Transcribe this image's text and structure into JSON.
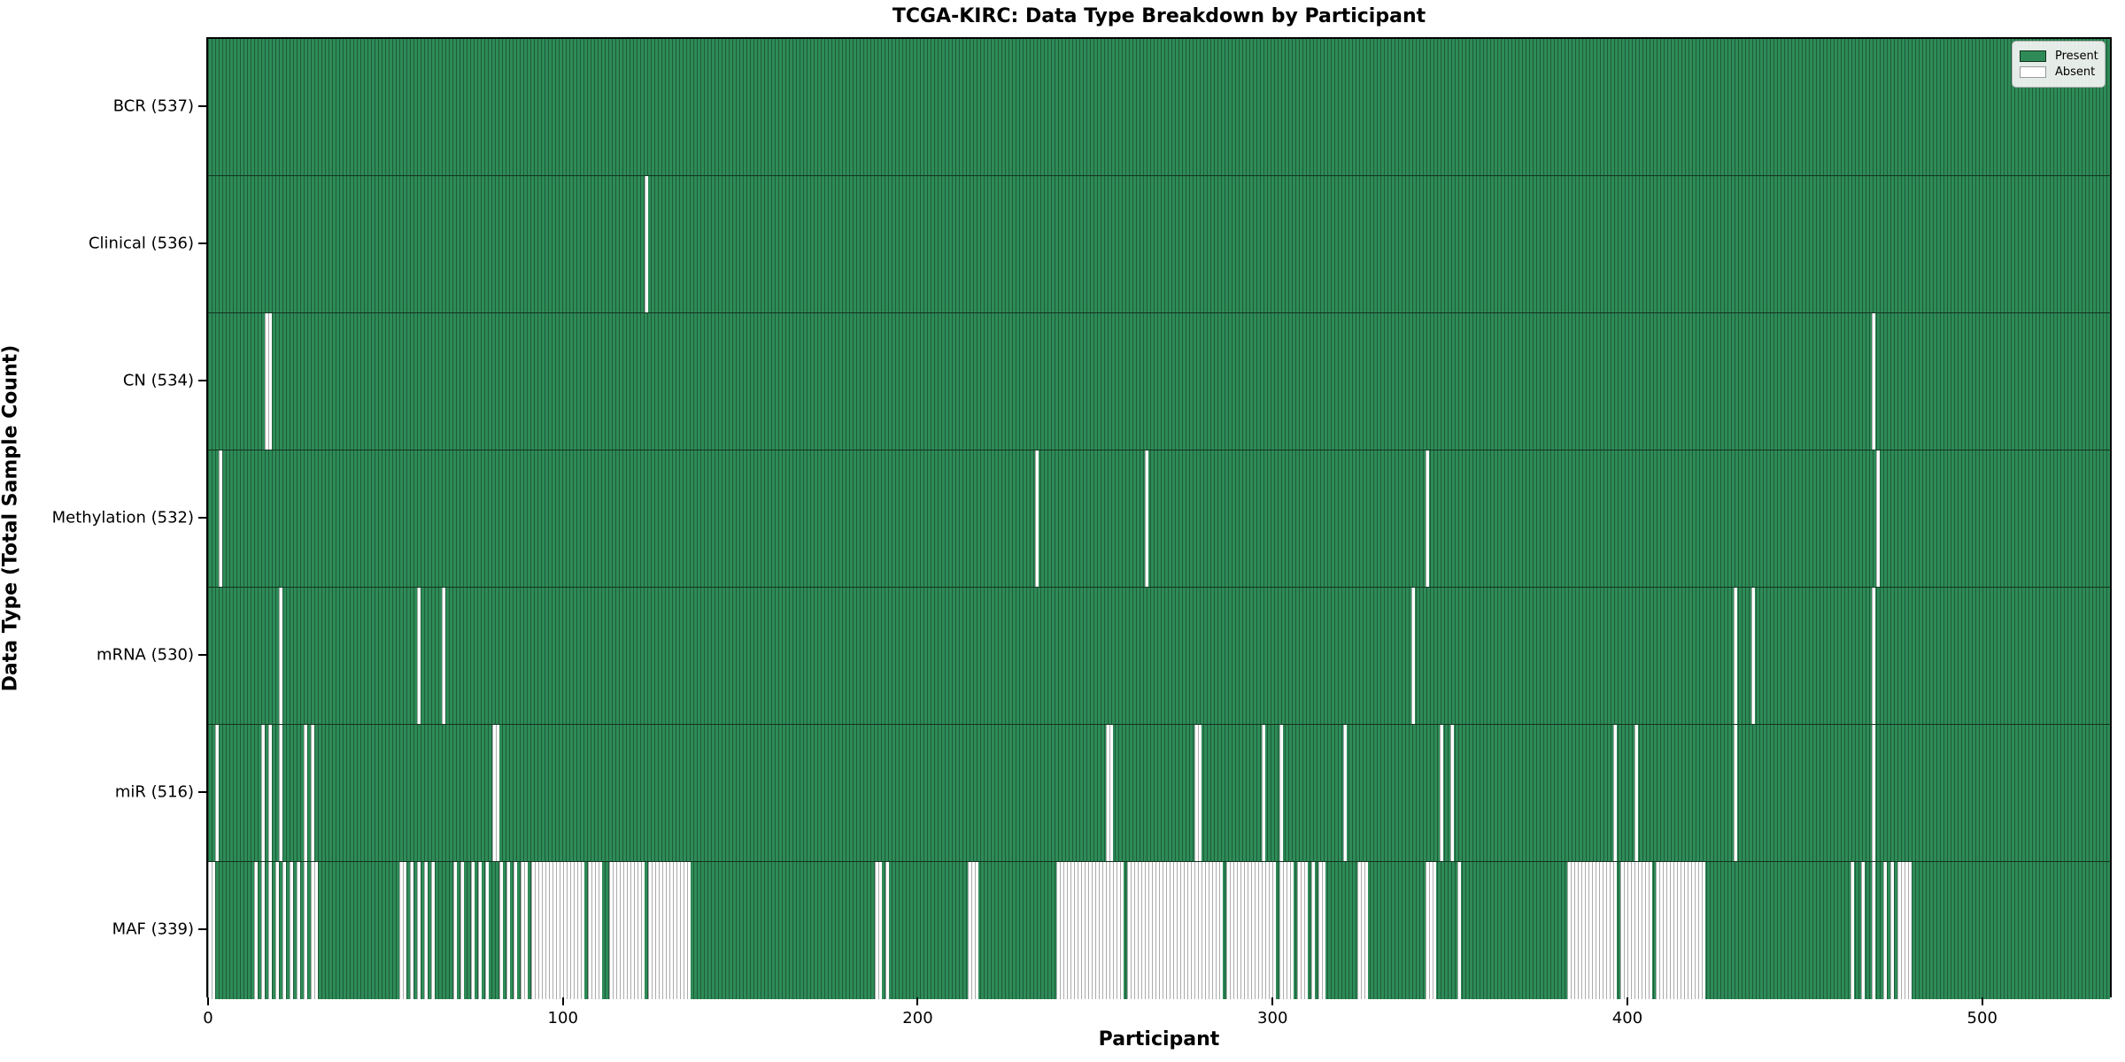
{
  "title": "TCGA-KIRC: Data Type Breakdown by Participant",
  "axes": {
    "x_label": "Participant",
    "y_label": "Data Type (Total Sample Count)"
  },
  "legend": {
    "present_label": "Present",
    "absent_label": "Absent"
  },
  "colors": {
    "present_fill": "#2e8b57",
    "present_edge": "#1d5c3a",
    "absent_fill": "#ffffff",
    "absent_edge": "#ababab",
    "row_separator": "#14331f",
    "axis": "#000000"
  },
  "chart_data": {
    "type": "heatmap",
    "title": "TCGA-KIRC: Data Type Breakdown by Participant",
    "xlabel": "Participant",
    "ylabel": "Data Type (Total Sample Count)",
    "legend_entries": [
      "Present",
      "Absent"
    ],
    "legend_position": "upper right",
    "n_participants": 537,
    "x_ticks": [
      0,
      100,
      200,
      300,
      400,
      500
    ],
    "xlim": [
      0,
      537
    ],
    "grid": false,
    "rows": [
      {
        "key": "BCR",
        "label": "BCR (537)",
        "present_total": 537,
        "absent_ranges": []
      },
      {
        "key": "Clinical",
        "label": "Clinical (536)",
        "present_total": 536,
        "absent_ranges": [
          [
            123,
            123
          ]
        ]
      },
      {
        "key": "CN",
        "label": "CN (534)",
        "present_total": 534,
        "absent_ranges": [
          [
            16,
            17
          ],
          [
            469,
            469
          ]
        ]
      },
      {
        "key": "Methylation",
        "label": "Methylation (532)",
        "present_total": 532,
        "absent_ranges": [
          [
            3,
            3
          ],
          [
            233,
            233
          ],
          [
            264,
            264
          ],
          [
            343,
            343
          ],
          [
            470,
            470
          ]
        ]
      },
      {
        "key": "mRNA",
        "label": "mRNA (530)",
        "present_total": 530,
        "absent_ranges": [
          [
            20,
            20
          ],
          [
            59,
            59
          ],
          [
            66,
            66
          ],
          [
            339,
            339
          ],
          [
            430,
            430
          ],
          [
            435,
            435
          ],
          [
            469,
            469
          ]
        ]
      },
      {
        "key": "miR",
        "label": "miR (516)",
        "present_total": 516,
        "absent_ranges": [
          [
            2,
            2
          ],
          [
            15,
            15
          ],
          [
            17,
            17
          ],
          [
            20,
            20
          ],
          [
            27,
            27
          ],
          [
            29,
            29
          ],
          [
            80,
            81
          ],
          [
            253,
            254
          ],
          [
            278,
            279
          ],
          [
            297,
            297
          ],
          [
            302,
            302
          ],
          [
            320,
            320
          ],
          [
            347,
            347
          ],
          [
            350,
            350
          ],
          [
            396,
            396
          ],
          [
            402,
            402
          ],
          [
            430,
            430
          ],
          [
            469,
            469
          ]
        ]
      },
      {
        "key": "MAF",
        "label": "MAF (339)",
        "present_total": 339,
        "absent_ranges": [
          [
            0,
            1
          ],
          [
            13,
            13
          ],
          [
            15,
            15
          ],
          [
            17,
            17
          ],
          [
            19,
            19
          ],
          [
            21,
            21
          ],
          [
            23,
            23
          ],
          [
            25,
            25
          ],
          [
            27,
            27
          ],
          [
            29,
            30
          ],
          [
            54,
            55
          ],
          [
            57,
            57
          ],
          [
            59,
            59
          ],
          [
            61,
            61
          ],
          [
            63,
            63
          ],
          [
            69,
            69
          ],
          [
            71,
            71
          ],
          [
            74,
            74
          ],
          [
            76,
            76
          ],
          [
            78,
            78
          ],
          [
            82,
            82
          ],
          [
            84,
            84
          ],
          [
            86,
            86
          ],
          [
            88,
            89
          ],
          [
            91,
            105
          ],
          [
            107,
            110
          ],
          [
            113,
            122
          ],
          [
            124,
            135
          ],
          [
            188,
            189
          ],
          [
            191,
            191
          ],
          [
            214,
            216
          ],
          [
            239,
            257
          ],
          [
            259,
            285
          ],
          [
            287,
            300
          ],
          [
            302,
            305
          ],
          [
            307,
            309
          ],
          [
            311,
            311
          ],
          [
            313,
            314
          ],
          [
            324,
            326
          ],
          [
            343,
            345
          ],
          [
            352,
            352
          ],
          [
            383,
            396
          ],
          [
            398,
            406
          ],
          [
            408,
            421
          ],
          [
            463,
            463
          ],
          [
            466,
            466
          ],
          [
            469,
            469
          ],
          [
            472,
            472
          ],
          [
            474,
            474
          ],
          [
            476,
            479
          ]
        ]
      }
    ]
  }
}
